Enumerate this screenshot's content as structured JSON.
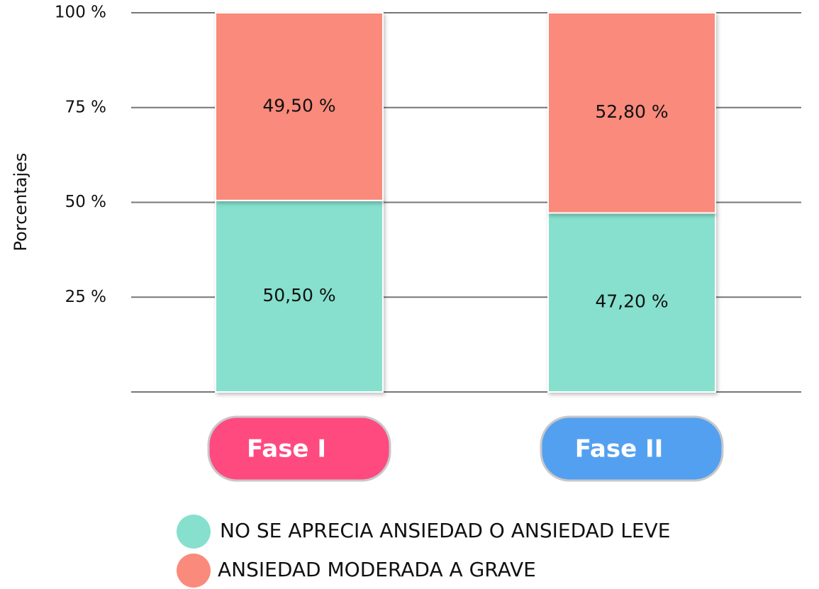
{
  "chart_data": {
    "type": "stacked_bar",
    "y_label": "Porcentajes",
    "categories": [
      "Fase I",
      "Fase II"
    ],
    "category_colors": [
      "#ff4a80",
      "#54a0f0"
    ],
    "series": [
      {
        "name": "NO SE APRECIA ANSIEDAD O ANSIEDAD LEVE",
        "color": "#86e0cd",
        "values": [
          50.5,
          47.2
        ],
        "value_labels": [
          "50,50 %",
          "47,20 %"
        ]
      },
      {
        "name": "ANSIEDAD MODERADA A GRAVE",
        "color": "#f98a7c",
        "values": [
          49.5,
          52.8
        ],
        "value_labels": [
          "49,50 %",
          "52,80 %"
        ]
      }
    ],
    "ylim": [
      0,
      100
    ],
    "yticks": [
      {
        "value": 25,
        "label": "25 %"
      },
      {
        "value": 50,
        "label": "50 %"
      },
      {
        "value": 75,
        "label": "75 %"
      },
      {
        "value": 100,
        "label": "100 %"
      }
    ],
    "grid": true
  }
}
